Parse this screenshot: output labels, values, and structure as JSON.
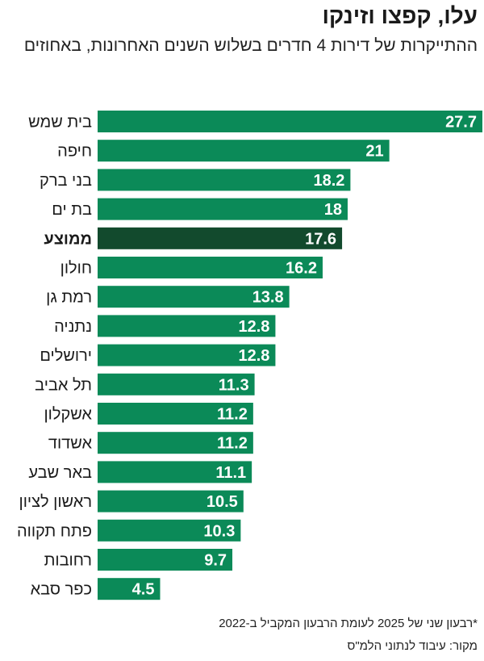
{
  "header": {
    "title": "עלו, קפצו וזינקו",
    "subtitle": "ההתייקרות של דירות 4 חדרים בשלוש השנים האחרונות, באחוזים"
  },
  "footer": {
    "footnote": "*רבעון שני של 2025 לעומת הרבעון המקביל ב-2022",
    "source": "מקור: עיבוד לנתוני הלמ\"ס"
  },
  "colors": {
    "bar": "#0b8a58",
    "highlight": "#124a2d",
    "value_text": "#ffffff",
    "label_text": "#1a1a1a"
  },
  "chart_data": {
    "type": "bar",
    "orientation": "horizontal",
    "categories": [
      "בית שמש",
      "חיפה",
      "בני ברק",
      "בת ים",
      "ממוצע",
      "חולון",
      "רמת גן",
      "נתניה",
      "ירושלים",
      "תל אביב",
      "אשקלון",
      "אשדוד",
      "באר שבע",
      "ראשון לציון",
      "פתח תקווה",
      "רחובות",
      "כפר סבא"
    ],
    "values": [
      27.7,
      21,
      18.2,
      18,
      17.6,
      16.2,
      13.8,
      12.8,
      12.8,
      11.3,
      11.2,
      11.2,
      11.1,
      10.5,
      10.3,
      9.7,
      4.5
    ],
    "value_labels": [
      "27.7",
      "21",
      "18.2",
      "18",
      "17.6",
      "16.2",
      "13.8",
      "12.8",
      "12.8",
      "11.3",
      "11.2",
      "11.2",
      "11.1",
      "10.5",
      "10.3",
      "9.7",
      "4.5"
    ],
    "highlighted_category": "ממוצע",
    "xlim": [
      0,
      27.7
    ],
    "grid": false,
    "legend": "none"
  }
}
